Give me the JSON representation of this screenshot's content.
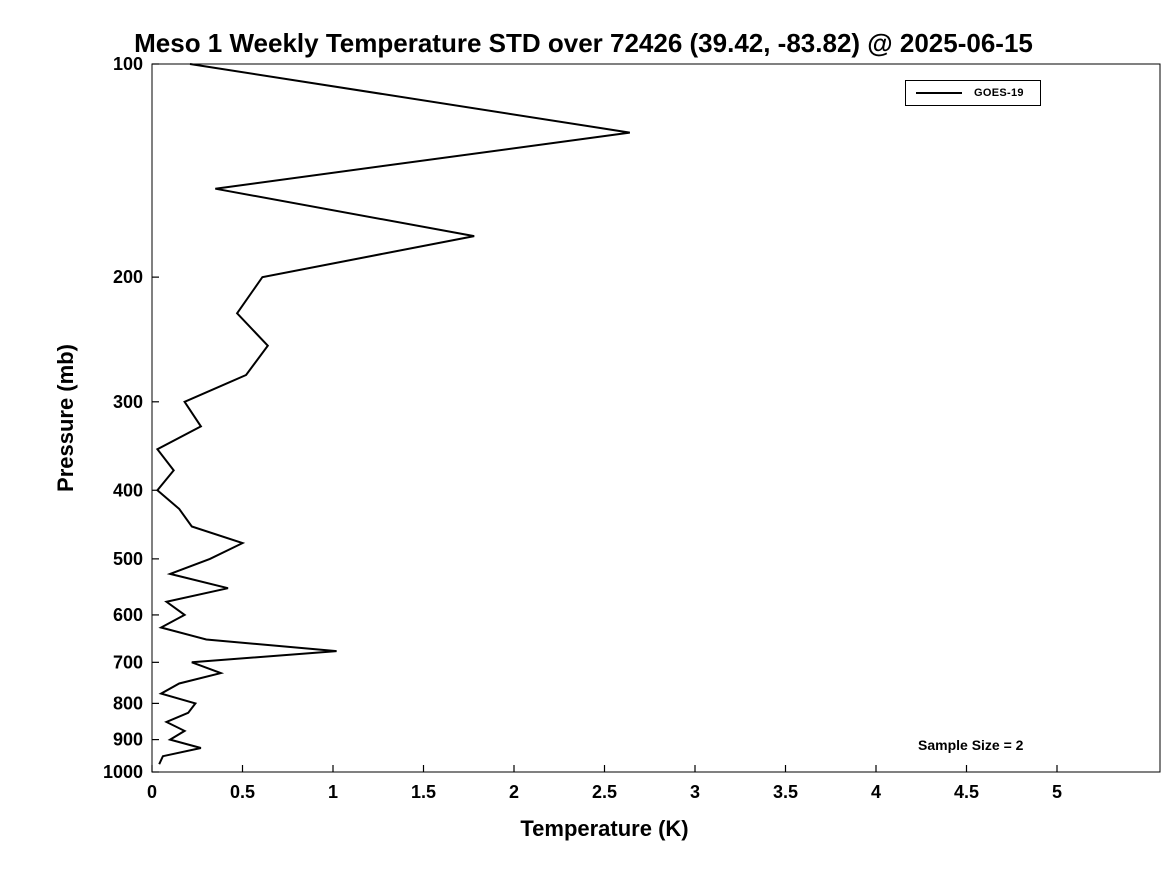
{
  "chart_data": {
    "type": "line",
    "title": "Meso 1 Weekly Temperature STD over 72426 (39.42, -83.82) @ 2025-06-15",
    "xlabel": "Temperature (K)",
    "ylabel": "Pressure (mb)",
    "xlim": [
      0,
      5
    ],
    "x_ticks": [
      0,
      0.5,
      1,
      1.5,
      2,
      2.5,
      3,
      3.5,
      4,
      4.5,
      5
    ],
    "x_tick_labels": [
      "0",
      "0.5",
      "1",
      "1.5",
      "2",
      "2.5",
      "3",
      "3.5",
      "4",
      "4.5",
      "5"
    ],
    "y_scale": "log",
    "y_axis_reversed": true,
    "ylim": [
      100,
      1000
    ],
    "y_ticks": [
      100,
      200,
      300,
      400,
      500,
      600,
      700,
      800,
      900,
      1000
    ],
    "y_tick_labels": [
      "100",
      "200",
      "300",
      "400",
      "500",
      "600",
      "700",
      "800",
      "900",
      "1000"
    ],
    "grid": false,
    "legend_position": "top-right",
    "annotation": "Sample Size = 2",
    "line_color": "#000000",
    "series": [
      {
        "name": "GOES-19",
        "color": "#000000",
        "pressure_mb": [
          100,
          125,
          150,
          175,
          200,
          225,
          250,
          275,
          300,
          325,
          350,
          375,
          400,
          425,
          450,
          475,
          500,
          525,
          550,
          575,
          600,
          625,
          650,
          675,
          700,
          725,
          750,
          775,
          800,
          825,
          850,
          875,
          900,
          925,
          950,
          975
        ],
        "std_k": [
          0.21,
          2.64,
          0.35,
          1.78,
          0.61,
          0.47,
          0.64,
          0.52,
          0.18,
          0.27,
          0.03,
          0.12,
          0.03,
          0.15,
          0.22,
          0.5,
          0.32,
          0.1,
          0.42,
          0.08,
          0.18,
          0.05,
          0.3,
          1.02,
          0.22,
          0.38,
          0.15,
          0.05,
          0.24,
          0.2,
          0.08,
          0.18,
          0.1,
          0.27,
          0.06,
          0.04
        ]
      }
    ]
  }
}
